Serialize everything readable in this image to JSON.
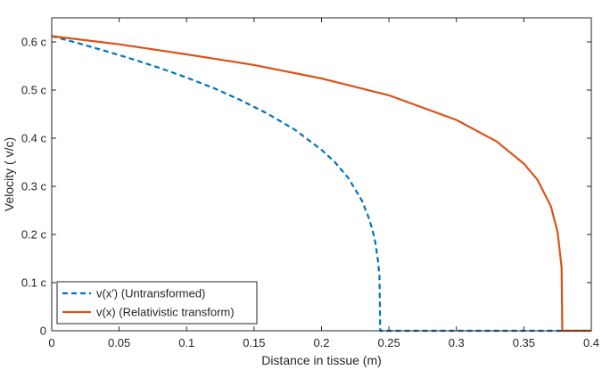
{
  "chart_data": {
    "type": "line",
    "xlabel": "Distance in tissue (m)",
    "ylabel": "Velocity  ( v/c)",
    "xlim": [
      0,
      0.4
    ],
    "ylim": [
      0,
      0.65
    ],
    "xticks": [
      0,
      0.05,
      0.1,
      0.15,
      0.2,
      0.25,
      0.3,
      0.35,
      0.4
    ],
    "xtick_labels": [
      "0",
      "0.05",
      "0.1",
      "0.15",
      "0.2",
      "0.25",
      "0.3",
      "0.35",
      "0.4"
    ],
    "yticks": [
      0,
      0.1,
      0.2,
      0.3,
      0.4,
      0.5,
      0.6
    ],
    "ytick_labels": [
      "0",
      "0.1 c",
      "0.2 c",
      "0.3 c",
      "0.4 c",
      "0.5 c",
      "0.6 c"
    ],
    "grid": false,
    "legend_position": "bottom-left",
    "series": [
      {
        "name": "v(x') (Untransformed)",
        "color": "#0072BD",
        "style": "dashed",
        "x": [
          0,
          0.02,
          0.04,
          0.06,
          0.08,
          0.1,
          0.12,
          0.14,
          0.16,
          0.18,
          0.2,
          0.21,
          0.22,
          0.23,
          0.235,
          0.238,
          0.24,
          0.242,
          0.243,
          0.2435,
          0.245,
          0.3,
          0.35,
          0.4
        ],
        "y": [
          0.612,
          0.597,
          0.581,
          0.564,
          0.546,
          0.526,
          0.504,
          0.479,
          0.451,
          0.418,
          0.376,
          0.35,
          0.317,
          0.27,
          0.235,
          0.207,
          0.182,
          0.143,
          0.113,
          0.0,
          0.0,
          0.0,
          0.0,
          0.0
        ]
      },
      {
        "name": "v(x) (Relativistic transform)",
        "color": "#D95319",
        "style": "solid",
        "x": [
          0,
          0.05,
          0.1,
          0.15,
          0.2,
          0.25,
          0.3,
          0.33,
          0.35,
          0.36,
          0.37,
          0.375,
          0.378,
          0.3785,
          0.38,
          0.39,
          0.4
        ],
        "y": [
          0.612,
          0.595,
          0.574,
          0.552,
          0.524,
          0.489,
          0.438,
          0.393,
          0.347,
          0.314,
          0.259,
          0.205,
          0.132,
          0.0,
          0.0,
          0.0,
          0.0
        ]
      }
    ]
  }
}
